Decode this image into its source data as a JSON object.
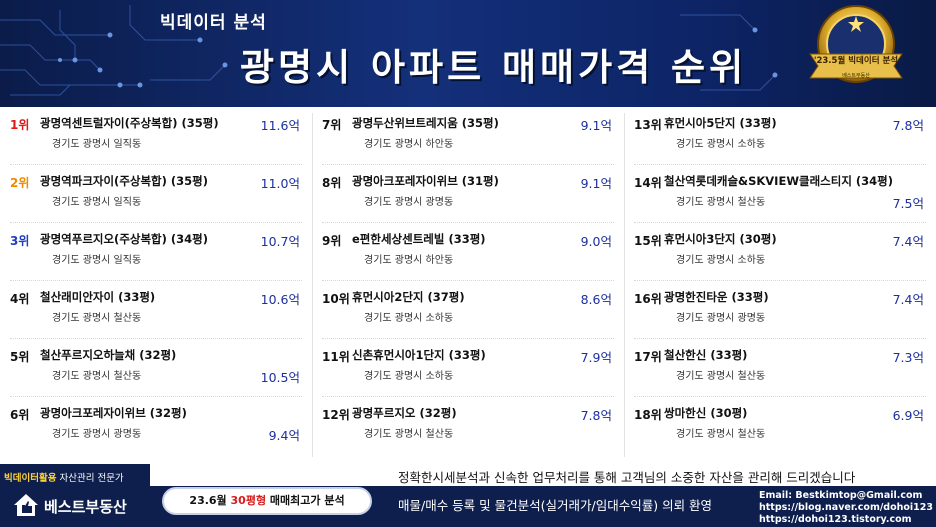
{
  "header": {
    "subtitle": "빅데이터 분석",
    "title": "광명시 아파트 매매가격 순위",
    "badge_label": "'23.5월 빅데이터 분석",
    "badge_sub": "베스트부동산",
    "colors": {
      "background": "#0b1c4a",
      "accent": "#ffd23a"
    }
  },
  "columns": [
    {
      "entries": [
        {
          "rank": "1위",
          "name": "광명역센트럴자이(주상복합) (35평)",
          "location": "경기도 광명시 일직동",
          "price": "11.6억"
        },
        {
          "rank": "2위",
          "name": "광명역파크자이(주상복합) (35평)",
          "location": "경기도 광명시 일직동",
          "price": "11.0억"
        },
        {
          "rank": "3위",
          "name": "광명역푸르지오(주상복합) (34평)",
          "location": "경기도 광명시 일직동",
          "price": "10.7억"
        },
        {
          "rank": "4위",
          "name": "철산래미안자이 (33평)",
          "location": "경기도 광명시 철산동",
          "price": "10.6억"
        },
        {
          "rank": "5위",
          "name": "철산푸르지오하늘채 (32평)",
          "location": "경기도 광명시 철산동",
          "price": "10.5억"
        },
        {
          "rank": "6위",
          "name": "광명아크포레자이위브 (32평)",
          "location": "경기도 광명시 광명동",
          "price": "9.4억"
        }
      ]
    },
    {
      "entries": [
        {
          "rank": "7위",
          "name": "광명두산위브트레지움 (35평)",
          "location": "경기도 광명시 하안동",
          "price": "9.1억"
        },
        {
          "rank": "8위",
          "name": "광명아크포레자이위브 (31평)",
          "location": "경기도 광명시 광명동",
          "price": "9.1억"
        },
        {
          "rank": "9위",
          "name": "e편한세상센트레빌 (33평)",
          "location": "경기도 광명시 하안동",
          "price": "9.0억"
        },
        {
          "rank": "10위",
          "name": "휴먼시아2단지 (37평)",
          "location": "경기도 광명시 소하동",
          "price": "8.6억"
        },
        {
          "rank": "11위",
          "name": "신촌휴먼시아1단지 (33평)",
          "location": "경기도 광명시 소하동",
          "price": "7.9억"
        },
        {
          "rank": "12위",
          "name": "광명푸르지오 (32평)",
          "location": "경기도 광명시 철산동",
          "price": "7.8억"
        }
      ]
    },
    {
      "entries": [
        {
          "rank": "13위",
          "name": "휴먼시아5단지 (33평)",
          "location": "경기도 광명시 소하동",
          "price": "7.8억"
        },
        {
          "rank": "14위",
          "name": "철산역롯데캐슬&SKVIEW클래스티지 (34평)",
          "location": "경기도 광명시 철산동",
          "price": "7.5억"
        },
        {
          "rank": "15위",
          "name": "휴먼시아3단지 (30평)",
          "location": "경기도 광명시 소하동",
          "price": "7.4억"
        },
        {
          "rank": "16위",
          "name": "광명한진타운 (33평)",
          "location": "경기도 광명시 광명동",
          "price": "7.4억"
        },
        {
          "rank": "17위",
          "name": "철산한신 (33평)",
          "location": "경기도 광명시 철산동",
          "price": "7.3억"
        },
        {
          "rank": "18위",
          "name": "쌍마한신 (30평)",
          "location": "경기도 광명시 철산동",
          "price": "6.9억"
        }
      ]
    }
  ],
  "footer": {
    "slogan": "정확한시세분석과 신속한 업무처리를 통해 고객님의 소중한 자산을 관리해 드리겠습니다",
    "brand_tagline_bold": "빅데이터활용",
    "brand_tagline_rest": " 자산관리 전문가",
    "brand_name": "베스트부동산",
    "pill_prefix": "23.6월 ",
    "pill_highlight": "30평형",
    "pill_suffix": " 매매최고가 분석",
    "notice": "매물/매수 등록 및 물건분석(실거래가/임대수익률) 의뢰 환영",
    "email": "Email: Bestkimtop@Gmail.com",
    "url1": "https://blog.naver.com/dohoi123",
    "url2": "https://dohoi123.tistory.com",
    "colors": {
      "background": "#0e1f4d",
      "price": "#1c2f9e",
      "rank1": "#e01a1a",
      "rank2": "#f08a00",
      "rank3": "#1f3fbf"
    }
  }
}
